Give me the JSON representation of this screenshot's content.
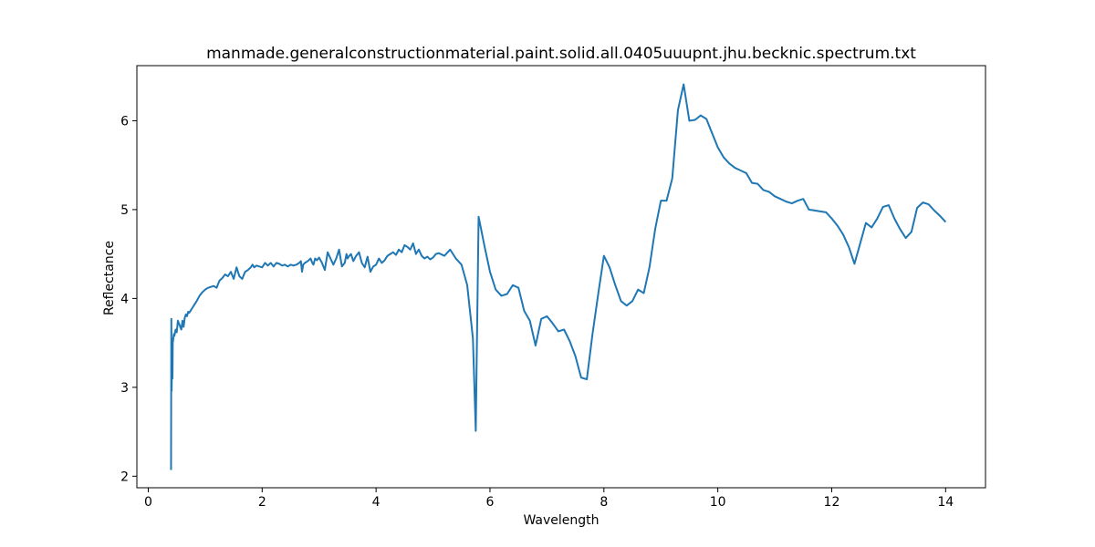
{
  "chart_data": {
    "type": "line",
    "title": "manmade.generalconstructionmaterial.paint.solid.all.0405uuupnt.jhu.becknic.spectrum.txt",
    "xlabel": "Wavelength",
    "ylabel": "Reflectance",
    "xlim": [
      -0.2,
      14.7
    ],
    "ylim": [
      1.87,
      6.62
    ],
    "xticks": [
      0,
      2,
      4,
      6,
      8,
      10,
      12,
      14
    ],
    "yticks": [
      2,
      3,
      4,
      5,
      6
    ],
    "grid": false,
    "line_color": "#1f77b4",
    "series": [
      {
        "x": [
          0.4,
          0.405,
          0.41,
          0.415,
          0.42,
          0.425,
          0.43,
          0.44,
          0.45,
          0.46,
          0.48,
          0.5,
          0.52,
          0.55,
          0.58,
          0.6,
          0.62,
          0.64,
          0.66,
          0.68,
          0.7,
          0.72,
          0.75,
          0.78,
          0.8,
          0.85,
          0.9,
          0.95,
          1.0,
          1.05,
          1.1,
          1.15,
          1.2,
          1.25,
          1.3,
          1.35,
          1.4,
          1.45,
          1.5,
          1.55,
          1.6,
          1.65,
          1.7,
          1.75,
          1.8,
          1.83,
          1.86,
          1.9,
          1.95,
          2.0,
          2.05,
          2.1,
          2.15,
          2.2,
          2.25,
          2.3,
          2.35,
          2.4,
          2.45,
          2.5,
          2.55,
          2.6,
          2.65,
          2.68,
          2.7,
          2.72,
          2.75,
          2.8,
          2.85,
          2.88,
          2.9,
          2.93,
          2.96,
          3.0,
          3.05,
          3.1,
          3.15,
          3.2,
          3.25,
          3.3,
          3.35,
          3.4,
          3.45,
          3.48,
          3.5,
          3.53,
          3.56,
          3.6,
          3.65,
          3.7,
          3.75,
          3.8,
          3.85,
          3.9,
          3.95,
          4.0,
          4.05,
          4.1,
          4.15,
          4.2,
          4.25,
          4.3,
          4.35,
          4.4,
          4.45,
          4.5,
          4.55,
          4.6,
          4.65,
          4.7,
          4.75,
          4.8,
          4.85,
          4.9,
          4.95,
          5.0,
          5.05,
          5.1,
          5.2,
          5.3,
          5.4,
          5.5,
          5.6,
          5.7,
          5.75,
          5.8,
          5.9,
          6.0,
          6.1,
          6.2,
          6.3,
          6.4,
          6.5,
          6.6,
          6.7,
          6.8,
          6.9,
          7.0,
          7.1,
          7.2,
          7.3,
          7.4,
          7.5,
          7.6,
          7.7,
          7.8,
          7.9,
          8.0,
          8.1,
          8.2,
          8.3,
          8.4,
          8.5,
          8.6,
          8.7,
          8.8,
          8.9,
          9.0,
          9.1,
          9.2,
          9.3,
          9.4,
          9.5,
          9.6,
          9.7,
          9.8,
          9.9,
          10.0,
          10.1,
          10.2,
          10.3,
          10.4,
          10.5,
          10.6,
          10.7,
          10.8,
          10.9,
          11.0,
          11.1,
          11.2,
          11.3,
          11.4,
          11.5,
          11.6,
          11.7,
          11.8,
          11.9,
          12.0,
          12.1,
          12.2,
          12.3,
          12.4,
          12.5,
          12.6,
          12.7,
          12.8,
          12.9,
          13.0,
          13.1,
          13.2,
          13.3,
          13.4,
          13.5,
          13.6,
          13.7,
          13.8,
          13.9,
          14.0
        ],
        "values": [
          2.07,
          3.77,
          2.96,
          3.2,
          3.4,
          3.1,
          3.5,
          3.55,
          3.6,
          3.58,
          3.65,
          3.62,
          3.75,
          3.7,
          3.65,
          3.75,
          3.68,
          3.78,
          3.82,
          3.8,
          3.85,
          3.84,
          3.87,
          3.9,
          3.92,
          3.97,
          4.03,
          4.07,
          4.1,
          4.12,
          4.13,
          4.14,
          4.12,
          4.2,
          4.23,
          4.27,
          4.25,
          4.3,
          4.22,
          4.35,
          4.25,
          4.22,
          4.3,
          4.32,
          4.35,
          4.38,
          4.35,
          4.37,
          4.36,
          4.35,
          4.4,
          4.37,
          4.4,
          4.36,
          4.4,
          4.39,
          4.37,
          4.38,
          4.36,
          4.38,
          4.37,
          4.38,
          4.4,
          4.42,
          4.3,
          4.38,
          4.4,
          4.42,
          4.45,
          4.4,
          4.38,
          4.45,
          4.43,
          4.46,
          4.4,
          4.32,
          4.52,
          4.45,
          4.38,
          4.45,
          4.55,
          4.36,
          4.4,
          4.5,
          4.45,
          4.48,
          4.5,
          4.42,
          4.48,
          4.52,
          4.4,
          4.35,
          4.47,
          4.3,
          4.36,
          4.38,
          4.45,
          4.4,
          4.43,
          4.48,
          4.5,
          4.52,
          4.49,
          4.55,
          4.52,
          4.6,
          4.58,
          4.55,
          4.62,
          4.5,
          4.55,
          4.48,
          4.45,
          4.47,
          4.44,
          4.46,
          4.5,
          4.51,
          4.48,
          4.55,
          4.45,
          4.38,
          4.15,
          3.55,
          2.51,
          4.92,
          4.6,
          4.3,
          4.1,
          4.03,
          4.05,
          4.15,
          4.12,
          3.86,
          3.75,
          3.47,
          3.77,
          3.8,
          3.72,
          3.63,
          3.65,
          3.52,
          3.35,
          3.11,
          3.09,
          3.6,
          4.05,
          4.48,
          4.35,
          4.15,
          3.97,
          3.92,
          3.97,
          4.1,
          4.06,
          4.35,
          4.78,
          5.1,
          5.1,
          5.35,
          6.12,
          6.41,
          6.0,
          6.01,
          6.06,
          6.02,
          5.86,
          5.7,
          5.59,
          5.52,
          5.47,
          5.44,
          5.41,
          5.3,
          5.29,
          5.22,
          5.2,
          5.15,
          5.12,
          5.09,
          5.07,
          5.1,
          5.12,
          5.0,
          4.99,
          4.98,
          4.97,
          4.9,
          4.82,
          4.72,
          4.58,
          4.39,
          4.62,
          4.85,
          4.8,
          4.9,
          5.03,
          5.05,
          4.9,
          4.78,
          4.68,
          4.75,
          5.02,
          5.08,
          5.06,
          4.99,
          4.93,
          4.86
        ]
      }
    ]
  }
}
